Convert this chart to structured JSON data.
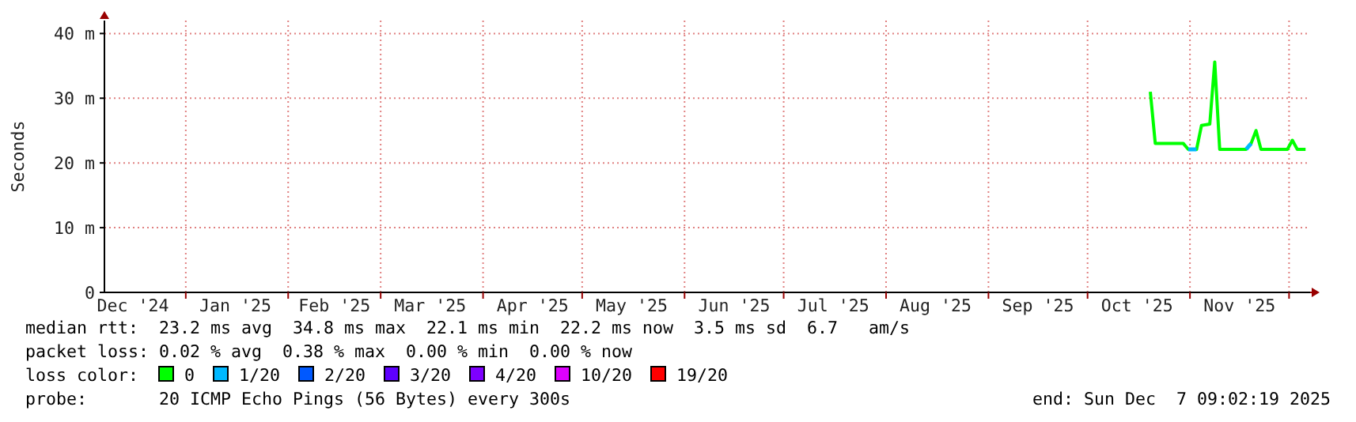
{
  "chart_data": {
    "type": "line",
    "ylabel": "Seconds",
    "legend_title": "loss color:",
    "legend": "bottom",
    "grid": true,
    "xlim": [
      "2024-12-07T09:00",
      "2025-12-07T09:00"
    ],
    "xticks": [
      {
        "value": "2024-12-16",
        "label": "Dec '24"
      },
      {
        "value": "2025-01-01",
        "label": null
      },
      {
        "value": "2025-01-16",
        "label": "Jan '25"
      },
      {
        "value": "2025-02-01",
        "label": null
      },
      {
        "value": "2025-02-15",
        "label": "Feb '25"
      },
      {
        "value": "2025-03-01",
        "label": null
      },
      {
        "value": "2025-03-16",
        "label": "Mar '25"
      },
      {
        "value": "2025-04-01",
        "label": null
      },
      {
        "value": "2025-04-16",
        "label": "Apr '25"
      },
      {
        "value": "2025-05-01",
        "label": null
      },
      {
        "value": "2025-05-16",
        "label": "May '25"
      },
      {
        "value": "2025-06-01",
        "label": null
      },
      {
        "value": "2025-06-16",
        "label": "Jun '25"
      },
      {
        "value": "2025-07-01",
        "label": null
      },
      {
        "value": "2025-07-16",
        "label": "Jul '25"
      },
      {
        "value": "2025-08-01",
        "label": null
      },
      {
        "value": "2025-08-16",
        "label": "Aug '25"
      },
      {
        "value": "2025-09-01",
        "label": null
      },
      {
        "value": "2025-09-16",
        "label": "Sep '25"
      },
      {
        "value": "2025-10-01",
        "label": null
      },
      {
        "value": "2025-10-16",
        "label": "Oct '25"
      },
      {
        "value": "2025-11-01",
        "label": null
      },
      {
        "value": "2025-11-16",
        "label": "Nov '25"
      },
      {
        "value": "2025-12-01",
        "label": null
      }
    ],
    "ylim": [
      0,
      42
    ],
    "yticks": [
      0,
      {
        "value": 10,
        "label": "10 m"
      },
      {
        "value": 20,
        "label": "20 m"
      },
      {
        "value": 30,
        "label": "30 m"
      },
      {
        "value": 40,
        "label": "40 m"
      }
    ],
    "x": [
      "2025-10-20T00:00",
      "2025-10-21T12:00",
      "2025-10-30T00:00",
      "2025-10-31T12:00",
      "2025-11-03T00:00",
      "2025-11-04T12:00",
      "2025-11-07T00:00",
      "2025-11-08T12:00",
      "2025-11-10T00:00",
      "2025-11-18T00:00",
      "2025-11-19T12:00",
      "2025-11-21T00:00",
      "2025-11-22T12:00",
      "2025-11-30T12:00",
      "2025-12-02T00:00",
      "2025-12-03T12:00",
      "2025-12-06T00:00"
    ],
    "series": [
      {
        "name": "0",
        "color": "#00ff00",
        "values": [
          31,
          23,
          23,
          22.1,
          22.1,
          25.8,
          26,
          35.6,
          22.1,
          22.1,
          23,
          25,
          22.1,
          22.1,
          23.5,
          22.1,
          22.1
        ]
      },
      {
        "name": "1/20",
        "color": "#00b8ff",
        "x": [
          "2025-10-31T12:00",
          "2025-11-02T00:00",
          "2025-11-03T00:00",
          "2025-11-10T00:00",
          "2025-11-18T00:00",
          "2025-11-19T12:00"
        ],
        "values": [
          22.1,
          22.1,
          22.1,
          null,
          22.1,
          23
        ]
      },
      {
        "name": "2/20",
        "color": "#0059ff",
        "values": [
          null,
          null,
          null,
          null,
          null,
          null,
          null,
          null,
          null,
          null,
          null,
          null,
          null,
          null,
          null,
          null,
          null
        ]
      },
      {
        "name": "3/20",
        "color": "#5e00ff",
        "values": [
          null,
          null,
          null,
          null,
          null,
          null,
          null,
          null,
          null,
          null,
          null,
          null,
          null,
          null,
          null,
          null,
          null
        ]
      },
      {
        "name": "4/20",
        "color": "#7e00ff",
        "values": [
          null,
          null,
          null,
          null,
          null,
          null,
          null,
          null,
          null,
          null,
          null,
          null,
          null,
          null,
          null,
          null,
          null
        ]
      },
      {
        "name": "10/20",
        "color": "#dd00ff",
        "values": [
          null,
          null,
          null,
          null,
          null,
          null,
          null,
          null,
          null,
          null,
          null,
          null,
          null,
          null,
          null,
          null,
          null
        ]
      },
      {
        "name": "19/20",
        "color": "#ff0000",
        "values": [
          null,
          null,
          null,
          null,
          null,
          null,
          null,
          null,
          null,
          null,
          null,
          null,
          null,
          null,
          null,
          null,
          null
        ]
      }
    ],
    "annotations": [
      "median rtt:  23.2 ms avg  34.8 ms max  22.1 ms min  22.2 ms now  3.5 ms sd  6.7   am/s",
      "packet loss: 0.02 % avg  0.38 % max  0.00 % min  0.00 % now",
      "probe:       20 ICMP Echo Pings (56 Bytes) every 300s",
      "end: Sun Dec  7 09:02:19 2025"
    ]
  }
}
